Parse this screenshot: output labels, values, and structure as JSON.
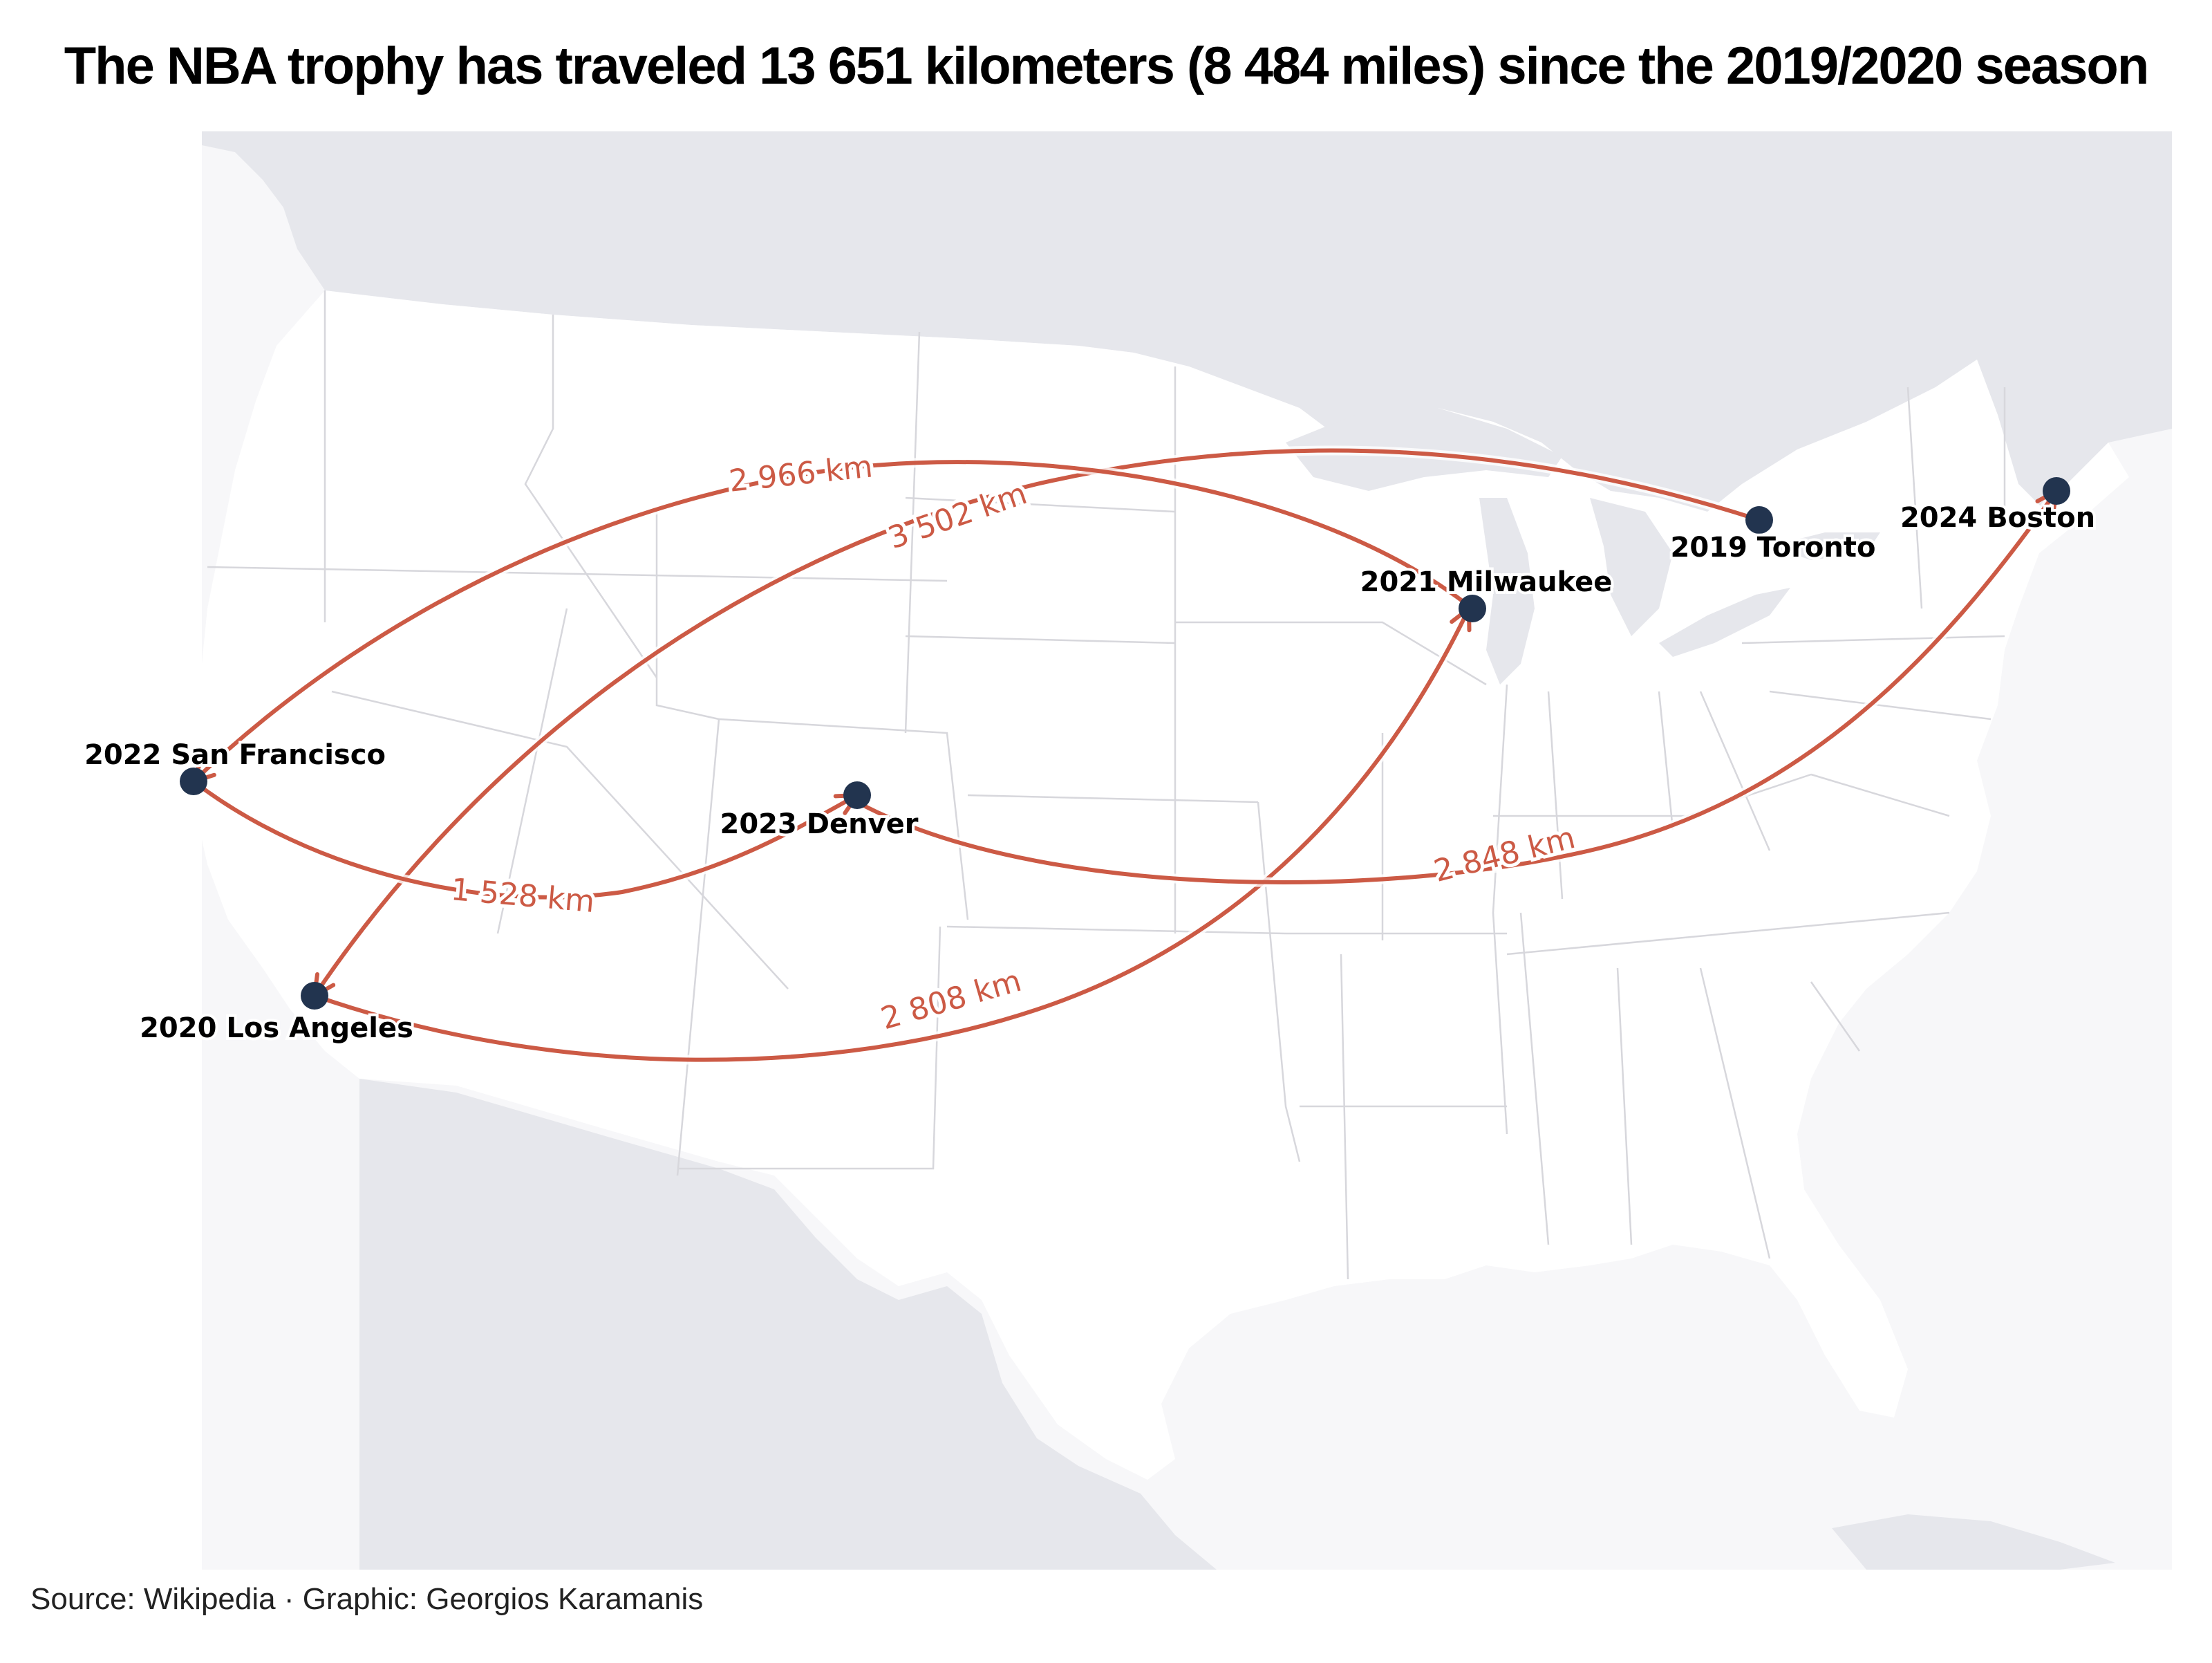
{
  "title": "The NBA trophy has traveled 13 651 kilometers (8 484 miles) since the 2019/2020 season",
  "caption": "Source: Wikipedia · Graphic: Georgios Karamanis",
  "colors": {
    "route": "#cc5a45",
    "dot": "#22344f",
    "land_other": "#e6e7ec",
    "land_us": "#ffffff",
    "water": "#f7f7f9",
    "state_border": "#d7d7dc"
  },
  "cities": [
    {
      "label": "2019 Toronto"
    },
    {
      "label": "2020 Los Angeles"
    },
    {
      "label": "2021 Milwaukee"
    },
    {
      "label": "2022 San Francisco"
    },
    {
      "label": "2023 Denver"
    },
    {
      "label": "2024 Boston"
    }
  ],
  "routes": [
    {
      "from": "Toronto",
      "to": "Los Angeles",
      "distance": "3 502 km"
    },
    {
      "from": "Los Angeles",
      "to": "Milwaukee",
      "distance": "2 808 km"
    },
    {
      "from": "Milwaukee",
      "to": "San Francisco",
      "distance": "2 966 km"
    },
    {
      "from": "San Francisco",
      "to": "Denver",
      "distance": "1 528 km"
    },
    {
      "from": "Denver",
      "to": "Boston",
      "distance": "2 848 km"
    }
  ]
}
